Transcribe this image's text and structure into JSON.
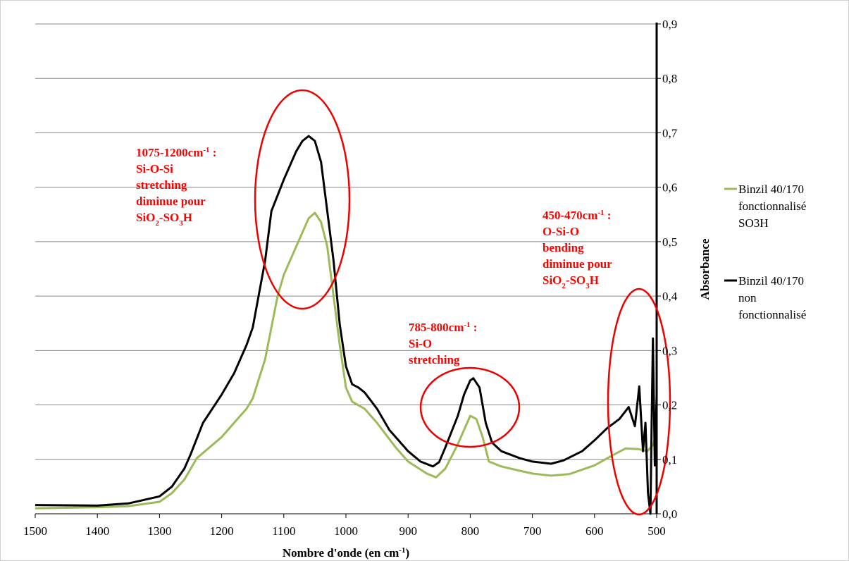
{
  "chart_data": {
    "type": "line",
    "xlabel": [
      {
        "text": "Nombre d'onde (en cm"
      },
      {
        "text": "-1",
        "sup": true
      },
      {
        "text": ")"
      }
    ],
    "ylabel": "Absorbance",
    "xlim": [
      1500,
      500
    ],
    "xticks": [
      1500,
      1400,
      1300,
      1200,
      1100,
      1000,
      900,
      800,
      700,
      600,
      500
    ],
    "ylim": [
      0,
      0.9
    ],
    "yticks": [
      {
        "value": 0,
        "label": "0,0"
      },
      {
        "value": 0.1,
        "label": "0,1"
      },
      {
        "value": 0.2,
        "label": "0,2"
      },
      {
        "value": 0.3,
        "label": "0,3"
      },
      {
        "value": 0.4,
        "label": "0,4"
      },
      {
        "value": 0.5,
        "label": "0,5"
      },
      {
        "value": 0.6,
        "label": "0,6"
      },
      {
        "value": 0.7,
        "label": "0,7"
      },
      {
        "value": 0.8,
        "label": "0,8"
      },
      {
        "value": 0.9,
        "label": "0,9"
      }
    ],
    "grid": true,
    "legend": "right",
    "series": [
      {
        "name": "Binzil 40/170 fonctionnalisé SO3H",
        "color": "#9bbb59",
        "x": [
          1500,
          1400,
          1350,
          1300,
          1280,
          1260,
          1240,
          1200,
          1180,
          1160,
          1150,
          1130,
          1110,
          1100,
          1080,
          1060,
          1050,
          1040,
          1030,
          1020,
          1010,
          1000,
          990,
          970,
          950,
          920,
          900,
          870,
          855,
          840,
          820,
          800,
          790,
          780,
          770,
          750,
          720,
          700,
          670,
          640,
          600,
          570,
          550,
          530,
          515,
          505,
          500
        ],
        "values": [
          0.01,
          0.012,
          0.014,
          0.022,
          0.038,
          0.063,
          0.102,
          0.141,
          0.167,
          0.193,
          0.212,
          0.284,
          0.4,
          0.439,
          0.491,
          0.543,
          0.553,
          0.536,
          0.491,
          0.4,
          0.31,
          0.232,
          0.206,
          0.193,
          0.167,
          0.122,
          0.096,
          0.074,
          0.067,
          0.083,
          0.128,
          0.18,
          0.174,
          0.141,
          0.096,
          0.087,
          0.079,
          0.074,
          0.07,
          0.073,
          0.089,
          0.108,
          0.12,
          0.119,
          0.115,
          0.128,
          0.154
        ]
      },
      {
        "name": "Binzil 40/170 non fonctionnalisé",
        "color": "#000000",
        "x": [
          1500,
          1400,
          1350,
          1300,
          1280,
          1260,
          1250,
          1230,
          1200,
          1180,
          1160,
          1150,
          1130,
          1120,
          1100,
          1080,
          1070,
          1060,
          1050,
          1040,
          1030,
          1020,
          1010,
          1000,
          990,
          980,
          970,
          950,
          930,
          900,
          880,
          860,
          850,
          840,
          820,
          810,
          800,
          795,
          785,
          775,
          765,
          750,
          720,
          700,
          670,
          650,
          620,
          600,
          580,
          560,
          545,
          535,
          528,
          522,
          518,
          514,
          510,
          508,
          506,
          503,
          500
        ],
        "values": [
          0.016,
          0.015,
          0.019,
          0.032,
          0.05,
          0.083,
          0.109,
          0.167,
          0.219,
          0.258,
          0.31,
          0.342,
          0.465,
          0.556,
          0.614,
          0.666,
          0.685,
          0.694,
          0.685,
          0.646,
          0.556,
          0.465,
          0.348,
          0.271,
          0.238,
          0.232,
          0.223,
          0.193,
          0.154,
          0.115,
          0.096,
          0.087,
          0.095,
          0.122,
          0.18,
          0.219,
          0.245,
          0.249,
          0.232,
          0.167,
          0.131,
          0.115,
          0.102,
          0.096,
          0.092,
          0.098,
          0.115,
          0.135,
          0.157,
          0.174,
          0.196,
          0.161,
          0.234,
          0.115,
          0.167,
          0.038,
          0,
          0.167,
          0.322,
          0.089,
          0.219
        ]
      }
    ],
    "annotations": [
      {
        "color": "#ff0000",
        "lines": [
          [
            {
              "text": "1075-1200cm"
            },
            {
              "text": "-1",
              "sup": true
            },
            {
              "text": " :"
            }
          ],
          [
            {
              "text": "Si-O-Si"
            }
          ],
          [
            {
              "text": "stretching"
            }
          ],
          [
            {
              "text": "diminue pour"
            }
          ],
          [
            {
              "text": "SiO"
            },
            {
              "text": "2",
              "sub": true
            },
            {
              "text": "-SO"
            },
            {
              "text": "3",
              "sub": true
            },
            {
              "text": "H"
            }
          ]
        ]
      },
      {
        "color": "#ff0000",
        "lines": [
          [
            {
              "text": "785-800cm"
            },
            {
              "text": "-1",
              "sup": true
            },
            {
              "text": " :"
            }
          ],
          [
            {
              "text": "Si-O"
            }
          ],
          [
            {
              "text": "stretching"
            }
          ]
        ]
      },
      {
        "color": "#ff0000",
        "lines": [
          [
            {
              "text": "450-470cm"
            },
            {
              "text": "-1",
              "sup": true
            },
            {
              "text": " :"
            }
          ],
          [
            {
              "text": "O-Si-O"
            }
          ],
          [
            {
              "text": "bending"
            }
          ],
          [
            {
              "text": "diminue pour"
            }
          ],
          [
            {
              "text": "SiO"
            },
            {
              "text": "2",
              "sub": true
            },
            {
              "text": "-SO"
            },
            {
              "text": "3",
              "sub": true
            },
            {
              "text": "H"
            }
          ]
        ]
      }
    ]
  }
}
